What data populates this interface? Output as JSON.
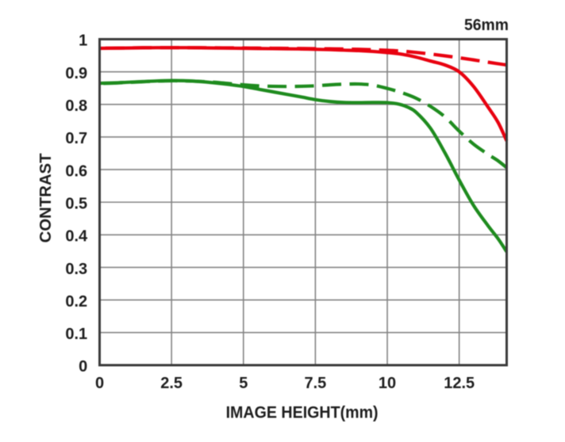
{
  "corner_label": "56mm",
  "colors": {
    "red": "#e8000f",
    "green": "#1e8b1e",
    "grid": "#848484",
    "border": "#3a3a3a",
    "text": "#1d1d1d",
    "background": "#ffffff"
  },
  "chart_data": {
    "type": "line",
    "title": "56mm",
    "xlabel": "IMAGE HEIGHT(mm)",
    "ylabel": "CONTRAST",
    "xlim": [
      0,
      14.15
    ],
    "ylim": [
      0,
      1
    ],
    "grid": true,
    "legend_position": "none",
    "xticks": {
      "values": [
        0,
        2.5,
        5,
        7.5,
        10,
        12.5
      ],
      "labels": [
        "0",
        "2.5",
        "5",
        "7.5",
        "10",
        "12.5"
      ]
    },
    "yticks": {
      "values": [
        0,
        0.1,
        0.2,
        0.3,
        0.4,
        0.5,
        0.6,
        0.7,
        0.8,
        0.9,
        1
      ],
      "labels": [
        "0",
        "0.1",
        "0.2",
        "0.3",
        "0.4",
        "0.5",
        "0.6",
        "0.7",
        "0.8",
        "0.9",
        "1"
      ]
    },
    "series": [
      {
        "name": "red-solid",
        "color": "red",
        "style": "solid",
        "x": [
          0,
          0.5,
          1,
          1.5,
          2,
          2.5,
          3,
          3.5,
          4,
          4.5,
          5,
          5.5,
          6,
          6.5,
          7,
          7.5,
          8,
          8.5,
          9,
          9.5,
          10,
          10.5,
          11,
          11.5,
          12,
          12.5,
          13,
          13.5,
          13.85,
          14.15
        ],
        "y": [
          0.972,
          0.9725,
          0.973,
          0.9735,
          0.974,
          0.974,
          0.974,
          0.9735,
          0.973,
          0.9725,
          0.972,
          0.9715,
          0.971,
          0.9705,
          0.97,
          0.969,
          0.968,
          0.9665,
          0.965,
          0.9625,
          0.959,
          0.954,
          0.945,
          0.933,
          0.921,
          0.9,
          0.855,
          0.792,
          0.745,
          0.688
        ]
      },
      {
        "name": "red-dashed",
        "color": "red",
        "style": "dashed",
        "x": [
          0,
          0.5,
          1,
          1.5,
          2,
          2.5,
          3,
          3.5,
          4,
          4.5,
          5,
          5.5,
          6,
          6.5,
          7,
          7.5,
          8,
          8.5,
          9,
          9.5,
          10,
          10.5,
          11,
          11.5,
          12,
          12.5,
          13,
          13.5,
          14.15
        ],
        "y": [
          0.972,
          0.9727,
          0.9733,
          0.9738,
          0.9741,
          0.9742,
          0.9741,
          0.9739,
          0.9736,
          0.9733,
          0.973,
          0.9726,
          0.9722,
          0.9718,
          0.9714,
          0.971,
          0.9705,
          0.97,
          0.969,
          0.9677,
          0.966,
          0.9635,
          0.9595,
          0.9545,
          0.949,
          0.943,
          0.9365,
          0.9295,
          0.921
        ]
      },
      {
        "name": "green-solid",
        "color": "green",
        "style": "solid",
        "x": [
          0,
          0.5,
          1,
          1.5,
          2,
          2.5,
          3,
          3.5,
          4,
          4.5,
          5,
          5.5,
          6,
          6.5,
          7,
          7.5,
          8,
          8.5,
          9,
          9.5,
          10,
          10.4,
          10.7,
          11,
          11.5,
          12,
          12.5,
          13,
          13.5,
          13.85,
          14.15
        ],
        "y": [
          0.865,
          0.866,
          0.868,
          0.87,
          0.872,
          0.873,
          0.8725,
          0.87,
          0.866,
          0.861,
          0.855,
          0.847,
          0.839,
          0.831,
          0.823,
          0.8145,
          0.809,
          0.806,
          0.8055,
          0.806,
          0.8055,
          0.801,
          0.792,
          0.776,
          0.727,
          0.652,
          0.568,
          0.49,
          0.428,
          0.388,
          0.348
        ]
      },
      {
        "name": "green-dashed",
        "color": "green",
        "style": "dashed",
        "x": [
          0,
          0.5,
          1,
          1.5,
          2,
          2.5,
          3,
          3.5,
          4,
          4.5,
          5,
          5.5,
          6,
          6.5,
          7,
          7.5,
          8,
          8.5,
          9,
          9.5,
          10,
          10.5,
          11,
          11.5,
          12,
          12.5,
          13,
          13.5,
          13.85,
          14.15
        ],
        "y": [
          0.864,
          0.8655,
          0.8675,
          0.8695,
          0.8715,
          0.8725,
          0.872,
          0.8705,
          0.868,
          0.864,
          0.86,
          0.857,
          0.8555,
          0.855,
          0.8555,
          0.857,
          0.86,
          0.862,
          0.8625,
          0.859,
          0.849,
          0.836,
          0.819,
          0.794,
          0.762,
          0.718,
          0.678,
          0.647,
          0.627,
          0.606
        ]
      }
    ]
  }
}
